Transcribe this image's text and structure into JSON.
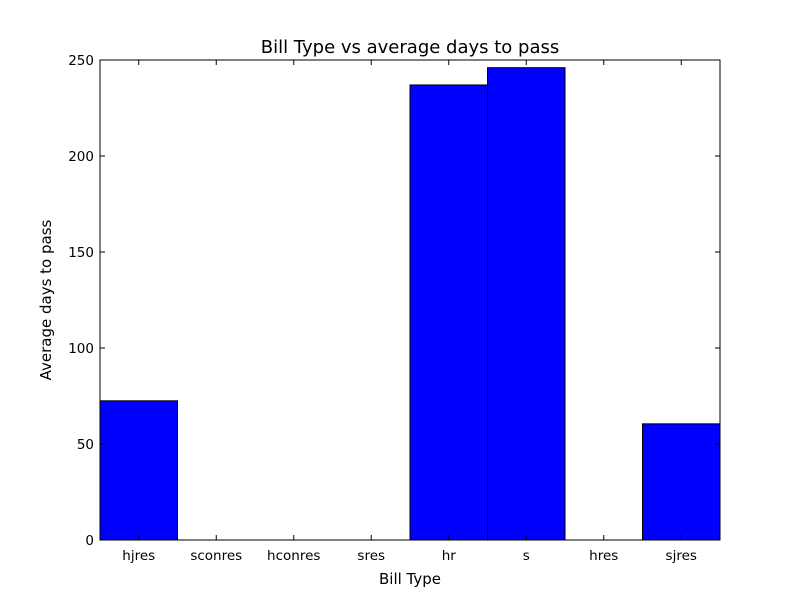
{
  "chart_data": {
    "type": "bar",
    "title": "Bill Type vs average days to pass",
    "xlabel": "Bill Type",
    "ylabel": "Average days to pass",
    "categories": [
      "hjres",
      "sconres",
      "hconres",
      "sres",
      "hr",
      "s",
      "hres",
      "sjres"
    ],
    "values": [
      72.5,
      0,
      0,
      0,
      237,
      246,
      0,
      60.5
    ],
    "ylim": [
      0,
      250
    ],
    "yticks": [
      "0",
      "50",
      "100",
      "150",
      "200",
      "250"
    ],
    "grid": false,
    "bar_color": "#0000ff",
    "edge_color": "#000000"
  }
}
